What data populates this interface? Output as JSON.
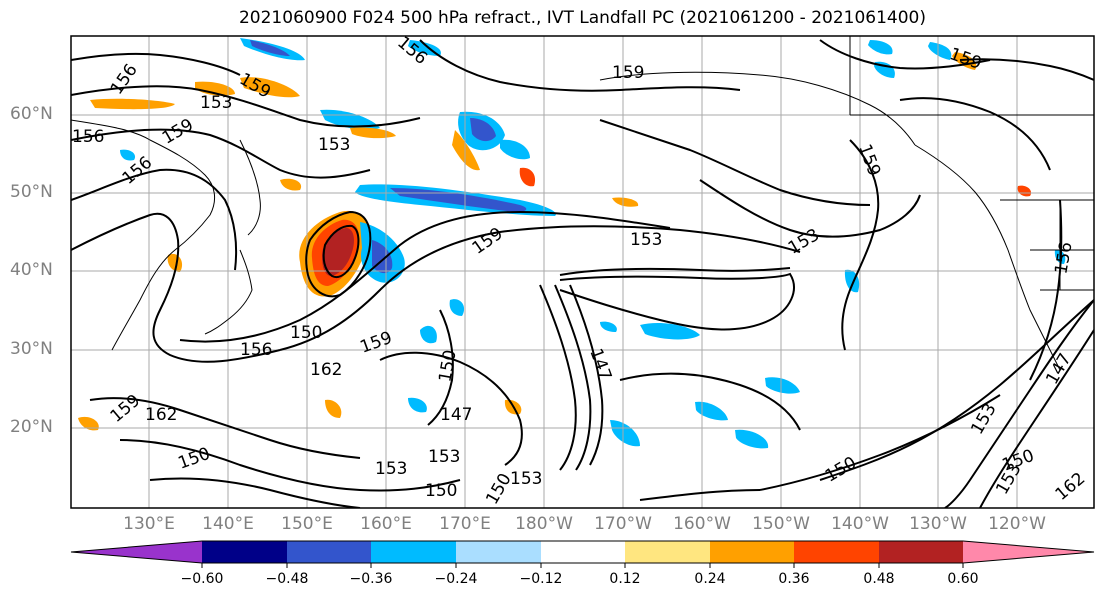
{
  "title": "2021060900 F024 500 hPa refract., IVT Landfall PC (2021061200 - 2021061400)",
  "latitude_labels": [
    "60°N",
    "50°N",
    "40°N",
    "30°N",
    "20°N"
  ],
  "longitude_labels": [
    "130°E",
    "140°E",
    "150°E",
    "160°E",
    "170°E",
    "180°W",
    "170°W",
    "160°W",
    "150°W",
    "140°W",
    "130°W",
    "120°W"
  ],
  "contour_labels": [
    "156",
    "153",
    "156",
    "159",
    "159",
    "156",
    "153",
    "159",
    "156",
    "153",
    "153",
    "159",
    "150",
    "156",
    "162",
    "159",
    "159",
    "162",
    "150",
    "147",
    "153",
    "150",
    "153",
    "150",
    "153",
    "150",
    "150",
    "147",
    "147",
    "150",
    "153",
    "156",
    "153",
    "159",
    "162",
    "159"
  ],
  "colorbar": {
    "tick_labels": [
      "−0.60",
      "−0.48",
      "−0.36",
      "−0.24",
      "−0.12",
      "0.12",
      "0.24",
      "0.36",
      "0.48",
      "0.60"
    ],
    "colors": [
      "#9933cc",
      "#000088",
      "#3355cc",
      "#00bbff",
      "#aadeff",
      "#ffffff",
      "#ffe680",
      "#ffa000",
      "#ff4400",
      "#b22222",
      "#ff88aa"
    ]
  },
  "map_colors": {
    "negative_strong": "#3355cc",
    "negative_mid": "#00bbff",
    "negative_weak": "#aadeff",
    "positive_weak": "#ffe680",
    "positive_mid": "#ffa000",
    "positive_strong": "#ff4400",
    "positive_extreme": "#b22222",
    "contour": "#000000",
    "coastline": "#000000",
    "gridline": "#aaaaaa"
  }
}
